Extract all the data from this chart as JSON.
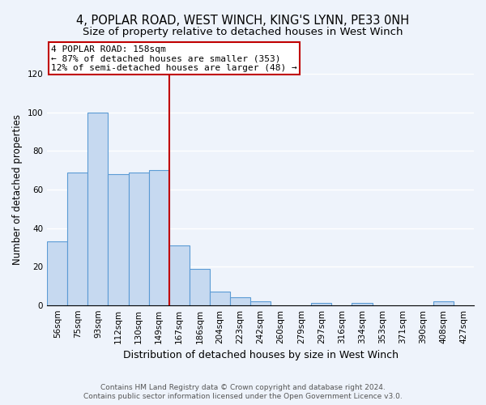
{
  "title1": "4, POPLAR ROAD, WEST WINCH, KING'S LYNN, PE33 0NH",
  "title2": "Size of property relative to detached houses in West Winch",
  "xlabel": "Distribution of detached houses by size in West Winch",
  "ylabel": "Number of detached properties",
  "bar_labels": [
    "56sqm",
    "75sqm",
    "93sqm",
    "112sqm",
    "130sqm",
    "149sqm",
    "167sqm",
    "186sqm",
    "204sqm",
    "223sqm",
    "242sqm",
    "260sqm",
    "279sqm",
    "297sqm",
    "316sqm",
    "334sqm",
    "353sqm",
    "371sqm",
    "390sqm",
    "408sqm",
    "427sqm"
  ],
  "bar_values": [
    33,
    69,
    100,
    68,
    69,
    70,
    31,
    19,
    7,
    4,
    2,
    0,
    0,
    1,
    0,
    1,
    0,
    0,
    0,
    2,
    0
  ],
  "bar_color": "#c6d9f0",
  "bar_edge_color": "#5b9bd5",
  "property_line_x": 5.5,
  "property_line_color": "#c00000",
  "annotation_line1": "4 POPLAR ROAD: 158sqm",
  "annotation_line2": "← 87% of detached houses are smaller (353)",
  "annotation_line3": "12% of semi-detached houses are larger (48) →",
  "annotation_box_color": "#ffffff",
  "annotation_box_edge_color": "#c00000",
  "ylim": [
    0,
    120
  ],
  "yticks": [
    0,
    20,
    40,
    60,
    80,
    100,
    120
  ],
  "footer1": "Contains HM Land Registry data © Crown copyright and database right 2024.",
  "footer2": "Contains public sector information licensed under the Open Government Licence v3.0.",
  "bg_color": "#eef3fb",
  "grid_color": "#ffffff",
  "title1_fontsize": 10.5,
  "title2_fontsize": 9.5,
  "xlabel_fontsize": 9,
  "ylabel_fontsize": 8.5,
  "tick_fontsize": 7.5,
  "annotation_fontsize": 8,
  "footer_fontsize": 6.5
}
